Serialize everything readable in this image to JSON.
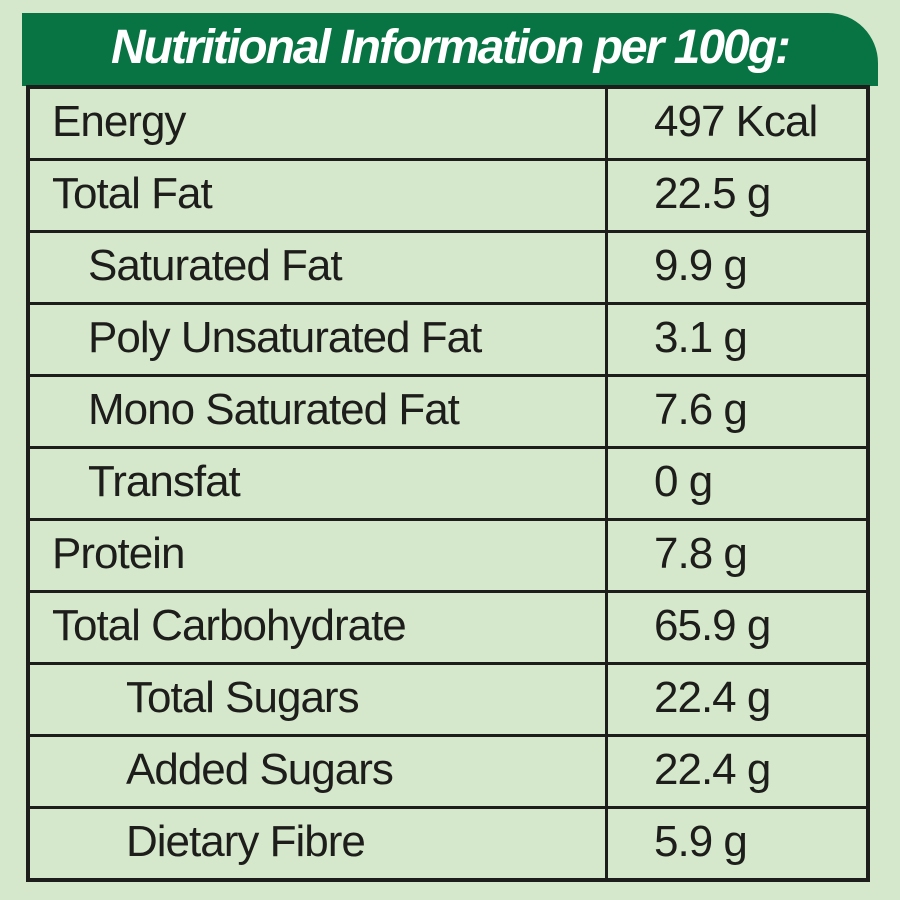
{
  "colors": {
    "background": "#d6e8cb",
    "accent_green": "#087343",
    "text": "#1d1d1b"
  },
  "header": {
    "title": "Nutritional Information per 100g:"
  },
  "table": {
    "rows": [
      {
        "label": "Energy",
        "value": "497 Kcal",
        "indent": 0
      },
      {
        "label": "Total Fat",
        "value": "22.5 g",
        "indent": 0
      },
      {
        "label": "Saturated Fat",
        "value": "9.9 g",
        "indent": 1
      },
      {
        "label": "Poly Unsaturated Fat",
        "value": "3.1 g",
        "indent": 1
      },
      {
        "label": "Mono Saturated Fat",
        "value": "7.6 g",
        "indent": 1
      },
      {
        "label": "Transfat",
        "value": "0 g",
        "indent": 1
      },
      {
        "label": "Protein",
        "value": "7.8 g",
        "indent": 0
      },
      {
        "label": "Total Carbohydrate",
        "value": "65.9 g",
        "indent": 0
      },
      {
        "label": "Total Sugars",
        "value": "22.4 g",
        "indent": 2
      },
      {
        "label": "Added Sugars",
        "value": "22.4 g",
        "indent": 2
      },
      {
        "label": "Dietary Fibre",
        "value": "5.9 g",
        "indent": 2
      }
    ]
  }
}
